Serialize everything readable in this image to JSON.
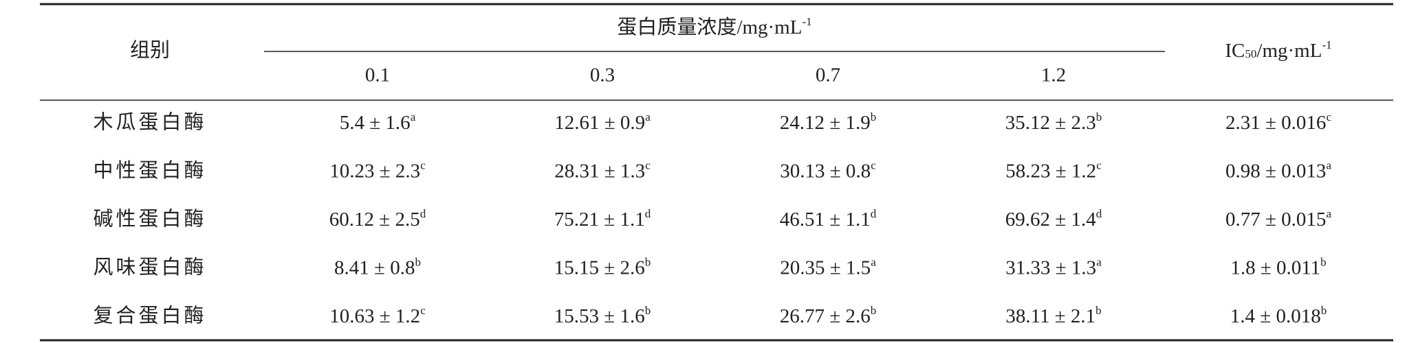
{
  "table": {
    "header": {
      "group": "组别",
      "concentration": {
        "pre": "蛋白质量浓度/mg·mL",
        "sup": "-1"
      },
      "levels": [
        "0.1",
        "0.3",
        "0.7",
        "1.2"
      ],
      "ic50": {
        "pre": "IC",
        "sub": "50",
        "mid": "/mg·mL",
        "sup": "-1"
      }
    },
    "rows": [
      {
        "name": "木瓜蛋白酶",
        "cells": [
          {
            "text": "5.4 ± 1.6",
            "sup": "a"
          },
          {
            "text": "12.61 ± 0.9",
            "sup": "a"
          },
          {
            "text": "24.12 ± 1.9",
            "sup": "b"
          },
          {
            "text": "35.12 ± 2.3",
            "sup": "b"
          },
          {
            "text": "2.31 ± 0.016",
            "sup": "c"
          }
        ]
      },
      {
        "name": "中性蛋白酶",
        "cells": [
          {
            "text": "10.23 ± 2.3",
            "sup": "c"
          },
          {
            "text": "28.31 ± 1.3",
            "sup": "c"
          },
          {
            "text": "30.13 ± 0.8",
            "sup": "c"
          },
          {
            "text": "58.23 ± 1.2",
            "sup": "c"
          },
          {
            "text": "0.98 ± 0.013",
            "sup": "a"
          }
        ]
      },
      {
        "name": "碱性蛋白酶",
        "cells": [
          {
            "text": "60.12 ± 2.5",
            "sup": "d"
          },
          {
            "text": "75.21 ± 1.1",
            "sup": "d"
          },
          {
            "text": "46.51 ± 1.1",
            "sup": "d"
          },
          {
            "text": "69.62 ± 1.4",
            "sup": "d"
          },
          {
            "text": "0.77 ± 0.015",
            "sup": "a"
          }
        ]
      },
      {
        "name": "风味蛋白酶",
        "cells": [
          {
            "text": "8.41 ± 0.8",
            "sup": "b"
          },
          {
            "text": "15.15 ± 2.6",
            "sup": "b"
          },
          {
            "text": "20.35 ± 1.5",
            "sup": "a"
          },
          {
            "text": "31.33 ± 1.3",
            "sup": "a"
          },
          {
            "text": "1.8 ± 0.011",
            "sup": "b"
          }
        ]
      },
      {
        "name": "复合蛋白酶",
        "cells": [
          {
            "text": "10.63 ± 1.2",
            "sup": "c"
          },
          {
            "text": "15.53 ± 1.6",
            "sup": "b"
          },
          {
            "text": "26.77 ± 2.6",
            "sup": "b"
          },
          {
            "text": "38.11 ± 2.1",
            "sup": "b"
          },
          {
            "text": "1.4 ± 0.018",
            "sup": "b"
          }
        ]
      }
    ]
  }
}
